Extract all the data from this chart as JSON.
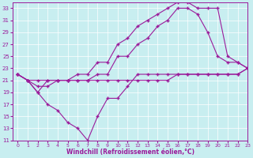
{
  "xlabel": "Windchill (Refroidissement éolien,°C)",
  "bg_color": "#c8eef0",
  "line_color": "#9b1b9b",
  "grid_color": "#ffffff",
  "xlim": [
    -0.5,
    23
  ],
  "ylim": [
    11,
    34
  ],
  "yticks": [
    11,
    13,
    15,
    17,
    19,
    21,
    23,
    25,
    27,
    29,
    31,
    33
  ],
  "xticks": [
    0,
    1,
    2,
    3,
    4,
    5,
    6,
    7,
    8,
    9,
    10,
    11,
    12,
    13,
    14,
    15,
    16,
    17,
    18,
    19,
    20,
    21,
    22,
    23
  ],
  "series": [
    {
      "x": [
        0,
        1,
        2,
        3,
        4,
        5,
        6,
        7,
        8,
        9,
        10,
        11,
        12,
        13,
        14,
        15,
        16,
        17,
        18,
        19,
        20,
        21,
        22,
        23
      ],
      "y": [
        22,
        21,
        19,
        17,
        16,
        14,
        13,
        11,
        15,
        18,
        18,
        20,
        22,
        22,
        22,
        22,
        22,
        22,
        22,
        22,
        22,
        22,
        22,
        23
      ]
    },
    {
      "x": [
        0,
        1,
        2,
        3,
        4,
        5,
        6,
        7,
        8,
        9,
        10,
        11,
        12,
        13,
        14,
        15,
        16,
        17,
        18,
        19,
        20,
        21,
        22,
        23
      ],
      "y": [
        22,
        21,
        21,
        21,
        21,
        21,
        21,
        21,
        21,
        21,
        21,
        21,
        21,
        21,
        21,
        21,
        22,
        22,
        22,
        22,
        22,
        22,
        22,
        23
      ]
    },
    {
      "x": [
        0,
        1,
        2,
        3,
        4,
        5,
        6,
        7,
        8,
        9,
        10,
        11,
        12,
        13,
        14,
        15,
        16,
        17,
        18,
        19,
        20,
        21,
        22,
        23
      ],
      "y": [
        22,
        21,
        20,
        20,
        21,
        21,
        21,
        21,
        22,
        22,
        25,
        25,
        27,
        28,
        30,
        31,
        33,
        33,
        32,
        29,
        25,
        24,
        24,
        23
      ]
    },
    {
      "x": [
        0,
        1,
        2,
        3,
        4,
        5,
        6,
        7,
        8,
        9,
        10,
        11,
        12,
        13,
        14,
        15,
        16,
        17,
        18,
        19,
        20,
        21,
        22,
        23
      ],
      "y": [
        22,
        21,
        19,
        21,
        21,
        21,
        22,
        22,
        24,
        24,
        27,
        28,
        30,
        31,
        32,
        33,
        34,
        34,
        33,
        33,
        33,
        25,
        24,
        23
      ]
    }
  ]
}
